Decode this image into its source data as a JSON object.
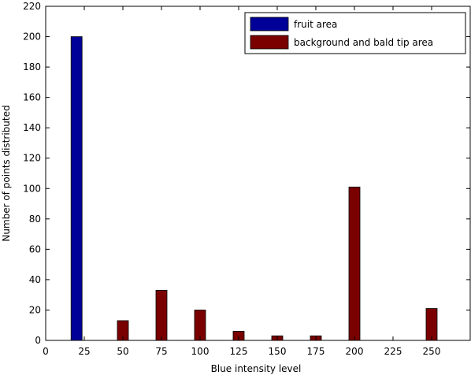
{
  "chart_data": {
    "type": "bar",
    "xlabel": "Blue intensity level",
    "ylabel": "Number of points distributed",
    "xlim": [
      0,
      275
    ],
    "ylim": [
      0,
      220
    ],
    "x_ticks": [
      0,
      25,
      50,
      75,
      100,
      125,
      150,
      175,
      200,
      225,
      250
    ],
    "y_ticks": [
      0,
      20,
      40,
      60,
      80,
      100,
      120,
      140,
      160,
      180,
      200,
      220
    ],
    "grid": false,
    "legend_position": "top-right",
    "series": [
      {
        "name": "fruit area",
        "color": "#000099",
        "points": [
          {
            "x": 20,
            "y": 200
          }
        ]
      },
      {
        "name": "background and bald tip area",
        "color": "#7a0000",
        "points": [
          {
            "x": 50,
            "y": 13
          },
          {
            "x": 75,
            "y": 33
          },
          {
            "x": 100,
            "y": 20
          },
          {
            "x": 125,
            "y": 6
          },
          {
            "x": 150,
            "y": 3
          },
          {
            "x": 175,
            "y": 3
          },
          {
            "x": 200,
            "y": 101
          },
          {
            "x": 250,
            "y": 21
          }
        ]
      }
    ]
  }
}
